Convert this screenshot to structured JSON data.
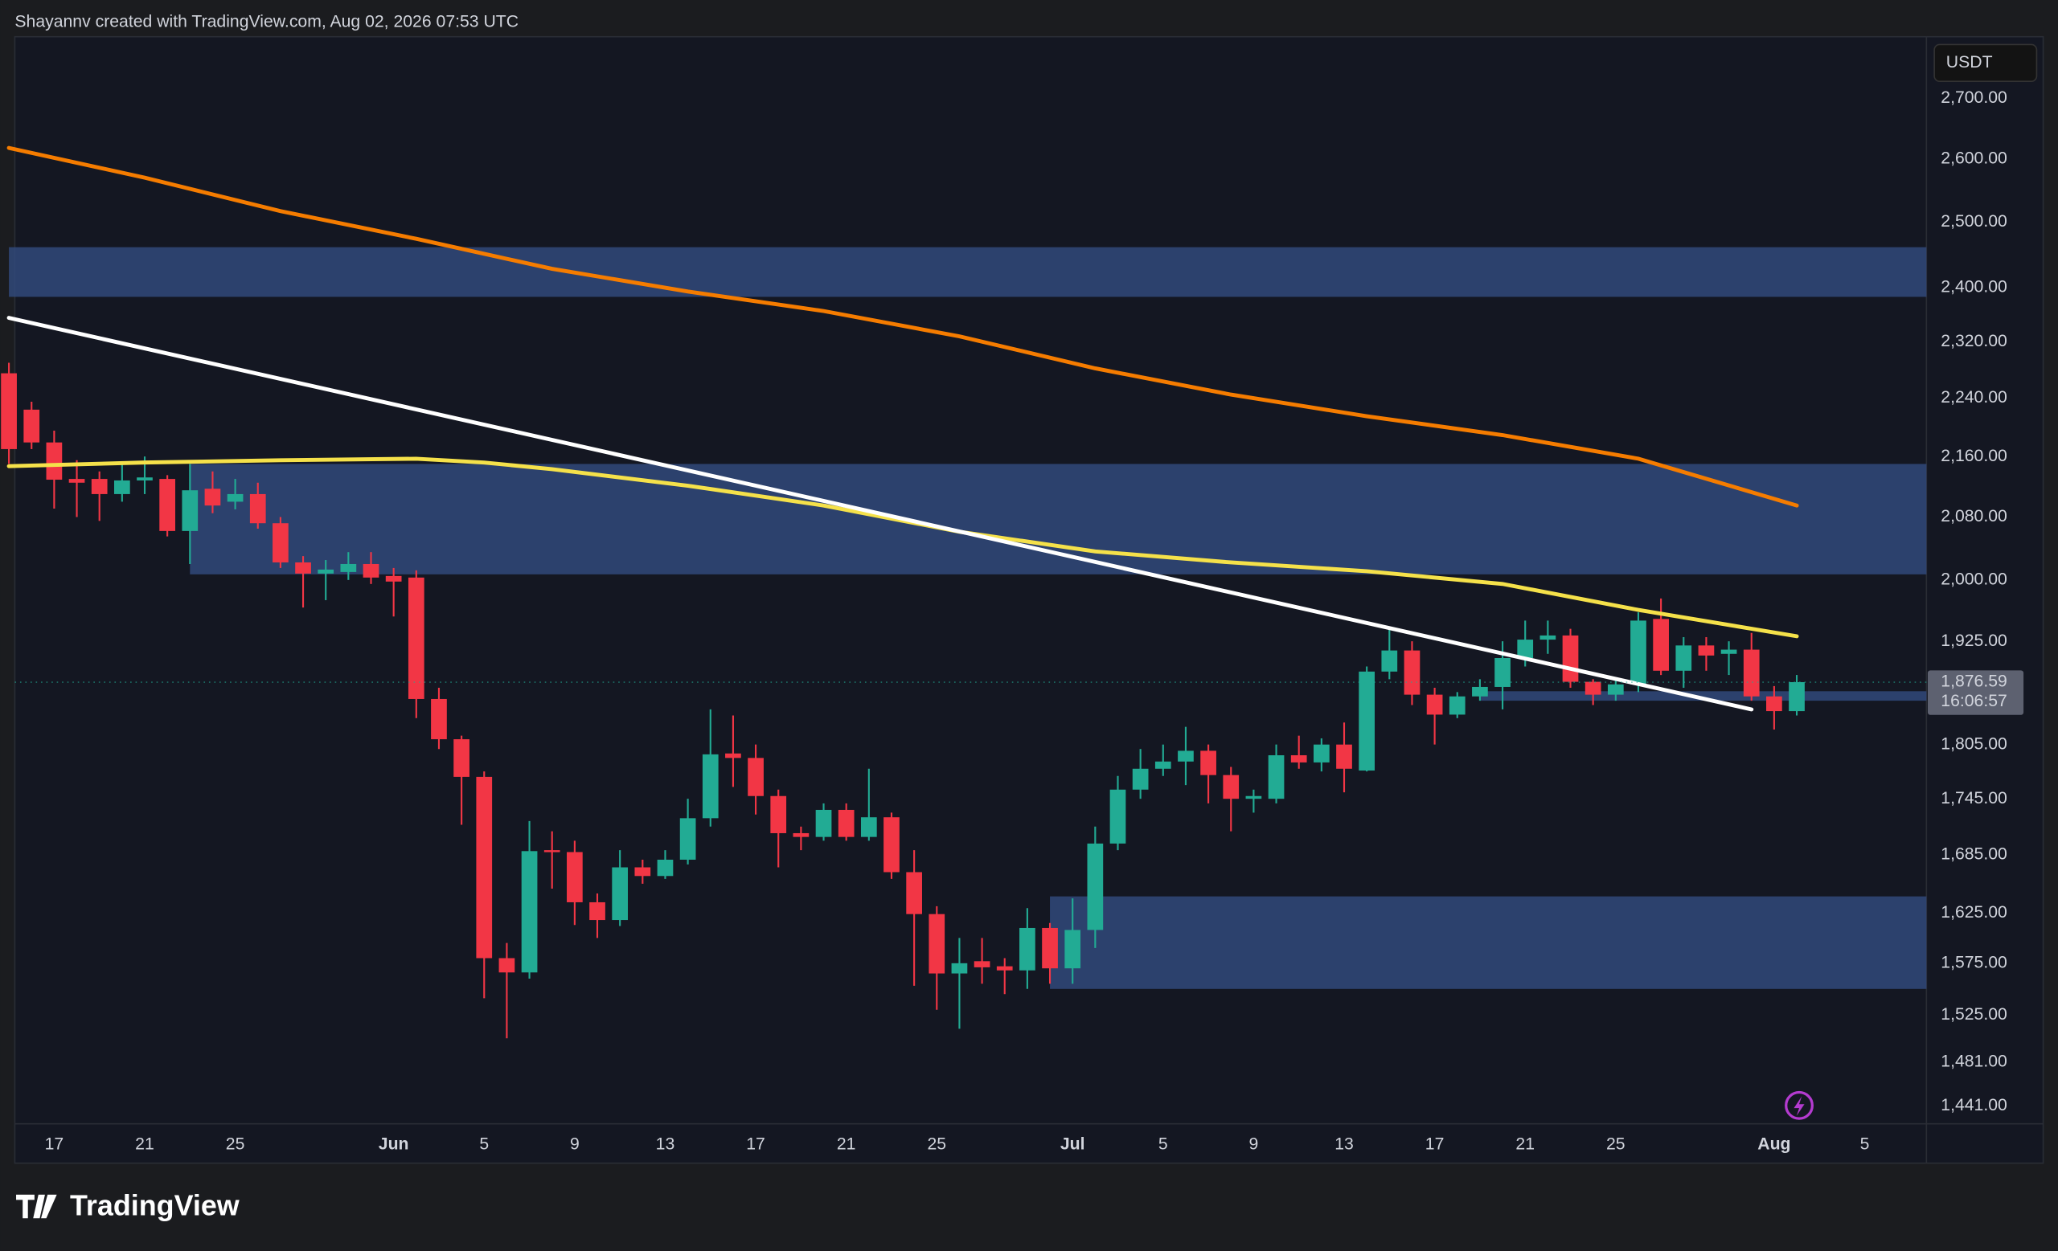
{
  "header": {
    "attribution": "Shayannv created with TradingView.com, Aug 02, 2026 07:53 UTC"
  },
  "footer": {
    "logo": "TradingView"
  },
  "chart_data": {
    "type": "candlestick",
    "currency": "USDT",
    "log_scale": true,
    "grid": false,
    "up_color": "#22ab94",
    "down_color": "#f23645",
    "open": [
      2275,
      2224,
      2179,
      2130,
      2130,
      2110,
      2128,
      2130,
      2062,
      2117,
      2100,
      2110,
      2072,
      2022,
      2008,
      2010,
      2020,
      2005,
      2003,
      1857,
      1811,
      1769,
      1580,
      1566,
      1690,
      1688,
      1636,
      1618,
      1672,
      1663,
      1680,
      1724,
      1795,
      1790,
      1748,
      1708,
      1704,
      1733,
      1704,
      1725,
      1667,
      1624,
      1565,
      1577,
      1572,
      1568,
      1610,
      1570,
      1608,
      1697,
      1755,
      1778,
      1786,
      1798,
      1771,
      1745,
      1745,
      1793,
      1785,
      1805,
      1776,
      1889,
      1914,
      1862,
      1839,
      1860,
      1871,
      1905,
      1927,
      1932,
      1877,
      1862,
      1874,
      1952,
      1890,
      1920,
      1910,
      1915,
      1860,
      1843
    ],
    "high": [
      2290,
      2235,
      2195,
      2155,
      2140,
      2150,
      2160,
      2135,
      2150,
      2140,
      2130,
      2125,
      2080,
      2030,
      2025,
      2035,
      2035,
      2015,
      2012,
      1870,
      1815,
      1775,
      1595,
      1721,
      1710,
      1700,
      1645,
      1690,
      1680,
      1690,
      1745,
      1845,
      1838,
      1805,
      1755,
      1715,
      1740,
      1740,
      1778,
      1730,
      1690,
      1632,
      1600,
      1600,
      1580,
      1630,
      1615,
      1640,
      1715,
      1770,
      1800,
      1805,
      1825,
      1805,
      1780,
      1755,
      1805,
      1815,
      1812,
      1830,
      1895,
      1940,
      1925,
      1870,
      1865,
      1880,
      1925,
      1950,
      1950,
      1940,
      1880,
      1880,
      1960,
      1977,
      1930,
      1930,
      1925,
      1935,
      1872,
      1885
    ],
    "low": [
      2150,
      2170,
      2091,
      2080,
      2075,
      2100,
      2110,
      2055,
      2020,
      2085,
      2090,
      2065,
      2015,
      1966,
      1975,
      2000,
      1995,
      1955,
      1835,
      1800,
      1717,
      1541,
      1503,
      1560,
      1650,
      1613,
      1600,
      1612,
      1655,
      1660,
      1675,
      1715,
      1758,
      1728,
      1672,
      1690,
      1700,
      1700,
      1700,
      1660,
      1553,
      1530,
      1512,
      1555,
      1545,
      1550,
      1555,
      1555,
      1590,
      1690,
      1745,
      1770,
      1760,
      1740,
      1710,
      1730,
      1740,
      1778,
      1775,
      1752,
      1775,
      1880,
      1850,
      1805,
      1835,
      1855,
      1845,
      1895,
      1910,
      1870,
      1850,
      1855,
      1865,
      1885,
      1870,
      1890,
      1885,
      1855,
      1822,
      1838
    ],
    "close": [
      2170,
      2179,
      2129,
      2125,
      2110,
      2128,
      2132,
      2062,
      2115,
      2095,
      2110,
      2072,
      2022,
      2008,
      2013,
      2020,
      2003,
      1998,
      1857,
      1811,
      1769,
      1580,
      1566,
      1689,
      1688,
      1636,
      1618,
      1672,
      1663,
      1680,
      1724,
      1794,
      1790,
      1748,
      1708,
      1704,
      1733,
      1704,
      1725,
      1667,
      1624,
      1565,
      1575,
      1571,
      1568,
      1610,
      1570,
      1608,
      1697,
      1755,
      1778,
      1786,
      1798,
      1771,
      1745,
      1748,
      1793,
      1785,
      1805,
      1778,
      1889,
      1914,
      1862,
      1839,
      1860,
      1871,
      1905,
      1927,
      1932,
      1877,
      1862,
      1874,
      1950,
      1890,
      1920,
      1908,
      1915,
      1860,
      1843,
      1876.59
    ],
    "last_price": {
      "value": 1876.59,
      "label": "1,876.59"
    },
    "countdown": "16:06:57",
    "lines": [
      {
        "color": "#f57c00",
        "width": 3,
        "x": [
          0,
          6,
          12,
          18,
          24,
          30,
          36,
          42,
          48,
          54,
          60,
          66,
          72,
          79
        ],
        "values": [
          2618,
          2570,
          2517,
          2474,
          2428,
          2394,
          2365,
          2328,
          2282,
          2245,
          2215,
          2189,
          2157,
          2095
        ]
      },
      {
        "color": "#f5e14a",
        "width": 3,
        "x": [
          0,
          6,
          12,
          18,
          21,
          24,
          30,
          36,
          42,
          48,
          54,
          60,
          66,
          72,
          79
        ],
        "values": [
          2147,
          2152,
          2155,
          2157,
          2152,
          2143,
          2121,
          2095,
          2061,
          2036,
          2022,
          2011,
          1995,
          1963,
          1931
        ]
      },
      {
        "color": "#ffffff",
        "width": 3,
        "x": [
          0,
          77
        ],
        "values": [
          2355,
          1845
        ]
      }
    ],
    "zones": [
      {
        "color": "#30497a",
        "x_start": 0,
        "low": 2386,
        "high": 2461
      },
      {
        "color": "#30497a",
        "x_start": 8,
        "low": 2007,
        "high": 2150
      },
      {
        "color": "#30497a",
        "x_start": 46,
        "low": 1550,
        "high": 1642
      },
      {
        "color": "#30497a",
        "x_start": 65,
        "low": 1855,
        "high": 1866
      }
    ],
    "xlim": [
      0.26,
      84.73
    ],
    "ylim": [
      1425,
      2806
    ],
    "yticks": [
      {
        "value": 2700,
        "label": "2,700.00"
      },
      {
        "value": 2600,
        "label": "2,600.00"
      },
      {
        "value": 2500,
        "label": "2,500.00"
      },
      {
        "value": 2400,
        "label": "2,400.00"
      },
      {
        "value": 2320,
        "label": "2,320.00"
      },
      {
        "value": 2240,
        "label": "2,240.00"
      },
      {
        "value": 2160,
        "label": "2,160.00"
      },
      {
        "value": 2080,
        "label": "2,080.00"
      },
      {
        "value": 2000,
        "label": "2,000.00"
      },
      {
        "value": 1925,
        "label": "1,925.00"
      },
      {
        "value": 1805,
        "label": "1,805.00"
      },
      {
        "value": 1745,
        "label": "1,745.00"
      },
      {
        "value": 1685,
        "label": "1,685.00"
      },
      {
        "value": 1625,
        "label": "1,625.00"
      },
      {
        "value": 1575,
        "label": "1,575.00"
      },
      {
        "value": 1525,
        "label": "1,525.00"
      },
      {
        "value": 1481,
        "label": "1,481.00"
      },
      {
        "value": 1441,
        "label": "1,441.00"
      }
    ],
    "xticks": [
      {
        "value": 2,
        "label": "17"
      },
      {
        "value": 6,
        "label": "21"
      },
      {
        "value": 10,
        "label": "25"
      },
      {
        "value": 17,
        "label": "Jun"
      },
      {
        "value": 21,
        "label": "5"
      },
      {
        "value": 25,
        "label": "9"
      },
      {
        "value": 29,
        "label": "13"
      },
      {
        "value": 33,
        "label": "17"
      },
      {
        "value": 37,
        "label": "21"
      },
      {
        "value": 41,
        "label": "25"
      },
      {
        "value": 47,
        "label": "Jul"
      },
      {
        "value": 51,
        "label": "5"
      },
      {
        "value": 55,
        "label": "9"
      },
      {
        "value": 59,
        "label": "13"
      },
      {
        "value": 63,
        "label": "17"
      },
      {
        "value": 67,
        "label": "21"
      },
      {
        "value": 71,
        "label": "25"
      },
      {
        "value": 78,
        "label": "Aug"
      },
      {
        "value": 82,
        "label": "5"
      }
    ]
  }
}
